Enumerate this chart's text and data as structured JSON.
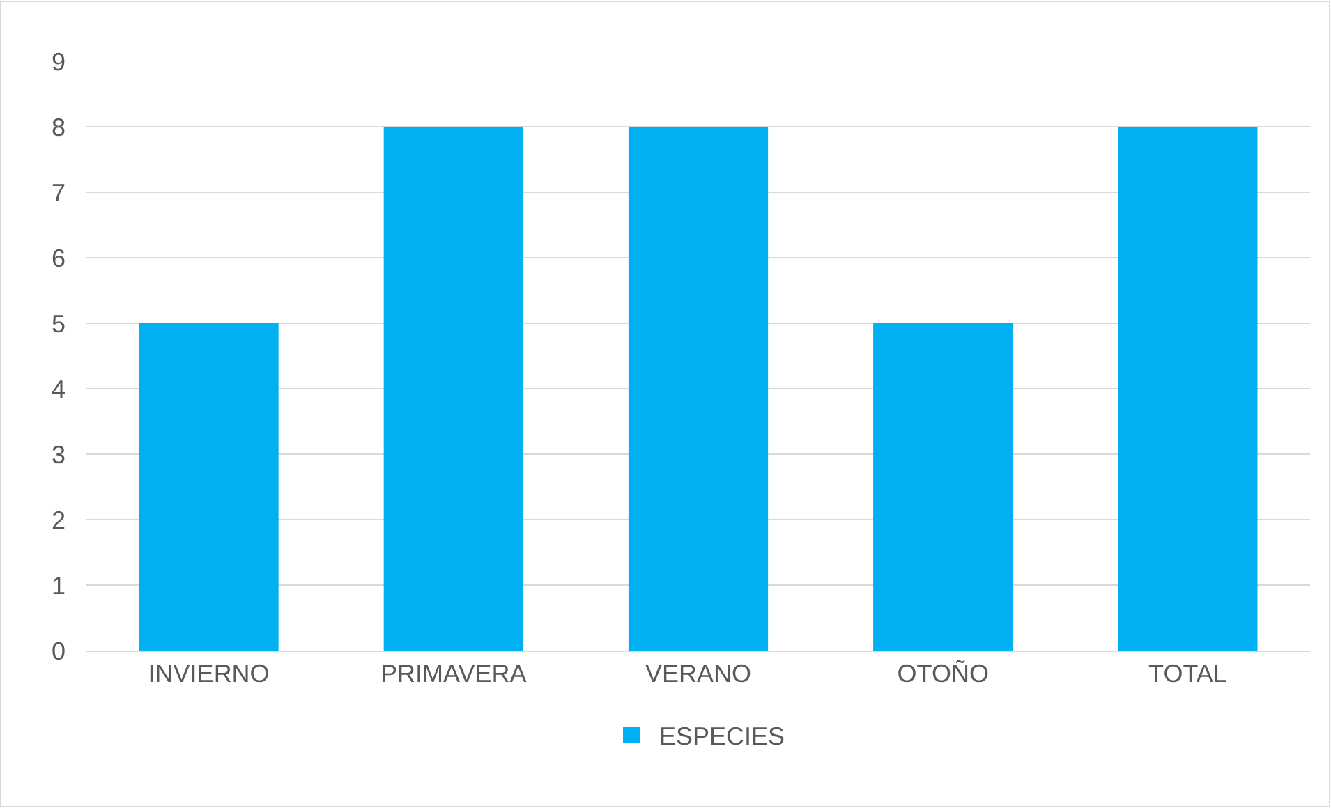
{
  "chart_data": {
    "type": "bar",
    "categories": [
      "INVIERNO",
      "PRIMAVERA",
      "VERANO",
      "OTOÑO",
      "TOTAL"
    ],
    "series": [
      {
        "name": "ESPECIES",
        "color": "#00b0f0",
        "values": [
          5,
          8,
          8,
          5,
          8
        ]
      }
    ],
    "ylim": [
      0,
      9
    ],
    "yticks": [
      0,
      1,
      2,
      3,
      4,
      5,
      6,
      7,
      8,
      9
    ],
    "grid": "y",
    "legend": "bottom"
  }
}
